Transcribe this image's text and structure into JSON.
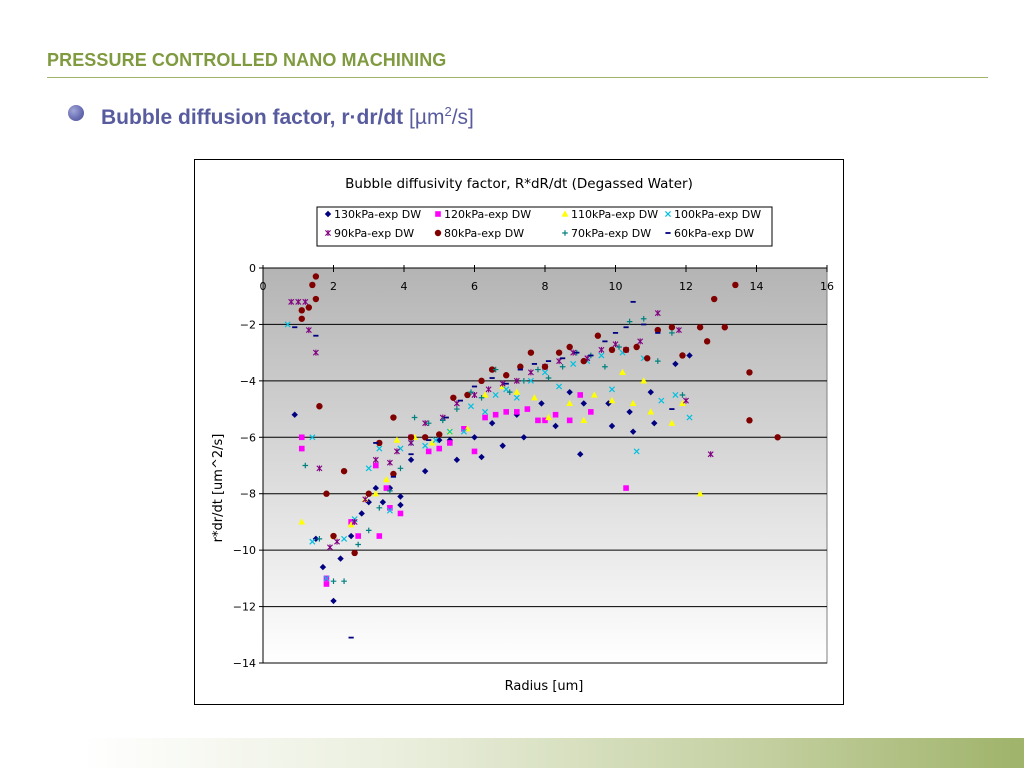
{
  "slide": {
    "title": "PRESSURE CONTROLLED NANO MACHINING",
    "bullet_main": "Bubble diffusion factor, r",
    "bullet_dot": "·",
    "bullet_dr": "dr/dt",
    "bullet_unit_open": "[µm",
    "bullet_unit_sup": "2",
    "bullet_unit_close": "/s]"
  },
  "colors": {
    "title": "#7f9a3f",
    "bullet": "#585c9e",
    "accent_rule": "#9fb36a"
  },
  "chart_data": {
    "type": "scatter",
    "title": "Bubble diffusivity factor, R*dR/dt (Degassed Water)",
    "xlabel": "Radius [um]",
    "ylabel": "r*dr/dt [um^2/s]",
    "xlim": [
      0,
      16
    ],
    "ylim": [
      -14,
      0
    ],
    "xticks": [
      0,
      2,
      4,
      6,
      8,
      10,
      12,
      14,
      16
    ],
    "yticks": [
      0,
      -2,
      -4,
      -6,
      -8,
      -10,
      -12,
      -14
    ],
    "ytick_labels": [
      "0",
      "−2",
      "−4",
      "−6",
      "−8",
      "−10",
      "−12",
      "−14"
    ],
    "grid": "horizontal",
    "legend_position": "top",
    "series": [
      {
        "name": "130kPa-exp DW",
        "marker": "diamond",
        "color": "#000080",
        "points": [
          [
            0.9,
            -5.2
          ],
          [
            1.5,
            -9.6
          ],
          [
            1.7,
            -10.6
          ],
          [
            2.0,
            -11.8
          ],
          [
            2.2,
            -10.3
          ],
          [
            2.5,
            -9.5
          ],
          [
            2.8,
            -8.7
          ],
          [
            3.0,
            -8.3
          ],
          [
            3.2,
            -7.8
          ],
          [
            3.4,
            -8.3
          ],
          [
            3.6,
            -7.8
          ],
          [
            3.9,
            -8.1
          ],
          [
            3.9,
            -8.4
          ],
          [
            4.2,
            -6.8
          ],
          [
            4.6,
            -7.2
          ],
          [
            5.0,
            -6.1
          ],
          [
            5.3,
            -6.1
          ],
          [
            5.5,
            -6.8
          ],
          [
            6.0,
            -6.0
          ],
          [
            6.2,
            -6.7
          ],
          [
            6.5,
            -5.5
          ],
          [
            6.8,
            -6.3
          ],
          [
            7.2,
            -5.2
          ],
          [
            7.4,
            -6.0
          ],
          [
            7.9,
            -4.8
          ],
          [
            8.3,
            -5.6
          ],
          [
            8.7,
            -4.4
          ],
          [
            9.0,
            -6.6
          ],
          [
            9.1,
            -4.8
          ],
          [
            9.8,
            -4.8
          ],
          [
            9.9,
            -5.6
          ],
          [
            10.4,
            -5.1
          ],
          [
            10.5,
            -5.8
          ],
          [
            11.0,
            -4.4
          ],
          [
            11.1,
            -5.5
          ],
          [
            11.7,
            -3.4
          ],
          [
            12.1,
            -3.1
          ]
        ]
      },
      {
        "name": "120kPa-exp DW",
        "marker": "square",
        "color": "#ff00ff",
        "points": [
          [
            1.1,
            -6.0
          ],
          [
            1.1,
            -6.4
          ],
          [
            1.8,
            -11.0
          ],
          [
            1.8,
            -11.2
          ],
          [
            2.5,
            -9.0
          ],
          [
            2.7,
            -9.5
          ],
          [
            3.2,
            -7.0
          ],
          [
            3.3,
            -9.5
          ],
          [
            3.5,
            -7.8
          ],
          [
            3.6,
            -8.5
          ],
          [
            3.9,
            -8.7
          ],
          [
            4.2,
            -6.0
          ],
          [
            4.7,
            -6.5
          ],
          [
            5.0,
            -6.4
          ],
          [
            5.3,
            -6.2
          ],
          [
            5.7,
            -5.7
          ],
          [
            6.0,
            -6.5
          ],
          [
            6.3,
            -5.3
          ],
          [
            6.6,
            -5.2
          ],
          [
            6.9,
            -5.1
          ],
          [
            7.2,
            -5.1
          ],
          [
            7.5,
            -5.0
          ],
          [
            7.8,
            -5.4
          ],
          [
            8.0,
            -5.4
          ],
          [
            8.3,
            -5.2
          ],
          [
            8.7,
            -5.4
          ],
          [
            9.0,
            -4.5
          ],
          [
            9.3,
            -5.1
          ],
          [
            10.3,
            -7.8
          ]
        ]
      },
      {
        "name": "110kPa-exp DW",
        "marker": "triangle",
        "color": "#ffff00",
        "points": [
          [
            1.1,
            -9.0
          ],
          [
            2.0,
            -9.5
          ],
          [
            2.5,
            -9.1
          ],
          [
            2.9,
            -8.2
          ],
          [
            3.2,
            -8.0
          ],
          [
            3.5,
            -7.5
          ],
          [
            3.8,
            -6.1
          ],
          [
            4.3,
            -6.0
          ],
          [
            4.8,
            -6.2
          ],
          [
            5.3,
            -5.8
          ],
          [
            5.8,
            -5.7
          ],
          [
            6.3,
            -4.5
          ],
          [
            6.8,
            -4.2
          ],
          [
            7.2,
            -4.4
          ],
          [
            7.7,
            -4.6
          ],
          [
            8.1,
            -5.3
          ],
          [
            8.7,
            -4.8
          ],
          [
            9.1,
            -5.4
          ],
          [
            9.4,
            -4.5
          ],
          [
            9.9,
            -4.7
          ],
          [
            10.2,
            -3.7
          ],
          [
            10.5,
            -4.8
          ],
          [
            10.8,
            -4.0
          ],
          [
            11.0,
            -5.1
          ],
          [
            11.6,
            -5.5
          ],
          [
            11.9,
            -4.8
          ],
          [
            12.4,
            -8.0
          ]
        ]
      },
      {
        "name": "100kPa-exp DW",
        "marker": "x",
        "color": "#00c0e0",
        "points": [
          [
            0.7,
            -2.0
          ],
          [
            1.4,
            -6.0
          ],
          [
            1.4,
            -9.7
          ],
          [
            1.8,
            -11.0
          ],
          [
            2.3,
            -9.6
          ],
          [
            2.6,
            -8.9
          ],
          [
            3.0,
            -7.1
          ],
          [
            3.3,
            -6.4
          ],
          [
            3.6,
            -8.6
          ],
          [
            3.9,
            -6.4
          ],
          [
            4.2,
            -6.2
          ],
          [
            4.6,
            -6.3
          ],
          [
            4.9,
            -6.1
          ],
          [
            5.3,
            -5.8
          ],
          [
            5.7,
            -5.8
          ],
          [
            5.9,
            -4.9
          ],
          [
            6.3,
            -5.1
          ],
          [
            6.6,
            -4.5
          ],
          [
            6.9,
            -4.3
          ],
          [
            7.2,
            -4.6
          ],
          [
            7.6,
            -4.0
          ],
          [
            8.0,
            -3.7
          ],
          [
            8.4,
            -4.2
          ],
          [
            8.8,
            -3.4
          ],
          [
            9.2,
            -3.3
          ],
          [
            9.6,
            -3.1
          ],
          [
            9.9,
            -4.3
          ],
          [
            10.2,
            -3.0
          ],
          [
            10.6,
            -6.5
          ],
          [
            10.8,
            -3.2
          ],
          [
            11.3,
            -4.7
          ],
          [
            11.7,
            -4.5
          ],
          [
            12.1,
            -5.3
          ]
        ]
      },
      {
        "name": "90kPa-exp DW",
        "marker": "star",
        "color": "#800080",
        "points": [
          [
            0.8,
            -1.2
          ],
          [
            1.0,
            -1.2
          ],
          [
            1.2,
            -1.2
          ],
          [
            1.3,
            -2.2
          ],
          [
            1.5,
            -3.0
          ],
          [
            1.6,
            -7.1
          ],
          [
            1.9,
            -9.9
          ],
          [
            2.1,
            -9.7
          ],
          [
            2.6,
            -9.0
          ],
          [
            2.9,
            -8.2
          ],
          [
            3.2,
            -6.8
          ],
          [
            3.6,
            -6.9
          ],
          [
            3.8,
            -6.5
          ],
          [
            4.2,
            -6.2
          ],
          [
            4.6,
            -5.5
          ],
          [
            5.1,
            -5.3
          ],
          [
            5.5,
            -4.8
          ],
          [
            6.0,
            -4.5
          ],
          [
            6.4,
            -4.3
          ],
          [
            6.8,
            -4.1
          ],
          [
            7.2,
            -4.0
          ],
          [
            7.6,
            -3.7
          ],
          [
            8.0,
            -3.5
          ],
          [
            8.4,
            -3.3
          ],
          [
            8.8,
            -3.0
          ],
          [
            9.2,
            -3.2
          ],
          [
            9.6,
            -2.9
          ],
          [
            10.0,
            -2.7
          ],
          [
            10.3,
            -2.9
          ],
          [
            10.7,
            -2.6
          ],
          [
            11.2,
            -1.6
          ],
          [
            11.8,
            -2.2
          ],
          [
            12.0,
            -4.7
          ],
          [
            12.7,
            -6.6
          ]
        ]
      },
      {
        "name": "80kPa-exp DW",
        "marker": "circle",
        "color": "#800000",
        "points": [
          [
            1.1,
            -1.5
          ],
          [
            1.1,
            -1.8
          ],
          [
            1.3,
            -1.4
          ],
          [
            1.4,
            -0.6
          ],
          [
            1.5,
            -0.3
          ],
          [
            1.5,
            -1.1
          ],
          [
            1.6,
            -4.9
          ],
          [
            1.8,
            -8.0
          ],
          [
            2.0,
            -9.5
          ],
          [
            2.3,
            -7.2
          ],
          [
            2.6,
            -10.1
          ],
          [
            3.0,
            -8.0
          ],
          [
            3.3,
            -6.2
          ],
          [
            3.7,
            -7.3
          ],
          [
            3.7,
            -5.3
          ],
          [
            4.2,
            -6.0
          ],
          [
            4.6,
            -6.0
          ],
          [
            5.0,
            -5.9
          ],
          [
            5.4,
            -4.6
          ],
          [
            5.8,
            -4.5
          ],
          [
            6.2,
            -4.0
          ],
          [
            6.5,
            -3.6
          ],
          [
            6.9,
            -3.8
          ],
          [
            7.3,
            -3.5
          ],
          [
            7.6,
            -3.0
          ],
          [
            8.0,
            -3.5
          ],
          [
            8.4,
            -3.0
          ],
          [
            8.7,
            -2.8
          ],
          [
            9.1,
            -3.3
          ],
          [
            9.5,
            -2.4
          ],
          [
            9.9,
            -2.9
          ],
          [
            10.3,
            -2.9
          ],
          [
            10.6,
            -2.8
          ],
          [
            10.9,
            -3.2
          ],
          [
            11.2,
            -2.2
          ],
          [
            11.6,
            -2.1
          ],
          [
            11.9,
            -3.1
          ],
          [
            12.4,
            -2.1
          ],
          [
            12.6,
            -2.6
          ],
          [
            12.8,
            -1.1
          ],
          [
            13.1,
            -2.1
          ],
          [
            13.4,
            -0.6
          ],
          [
            13.8,
            -5.4
          ],
          [
            13.8,
            -3.7
          ],
          [
            14.6,
            -6.0
          ]
        ]
      },
      {
        "name": "70kPa-exp DW",
        "marker": "plus",
        "color": "#008080",
        "points": [
          [
            1.2,
            -7.0
          ],
          [
            1.6,
            -9.6
          ],
          [
            2.0,
            -11.1
          ],
          [
            2.3,
            -11.1
          ],
          [
            2.7,
            -9.8
          ],
          [
            3.0,
            -9.3
          ],
          [
            3.3,
            -8.5
          ],
          [
            3.6,
            -7.9
          ],
          [
            3.9,
            -7.1
          ],
          [
            4.3,
            -5.3
          ],
          [
            4.7,
            -5.5
          ],
          [
            5.1,
            -5.4
          ],
          [
            5.5,
            -5.0
          ],
          [
            5.9,
            -4.4
          ],
          [
            6.2,
            -4.6
          ],
          [
            6.6,
            -3.6
          ],
          [
            7.0,
            -4.4
          ],
          [
            7.4,
            -4.0
          ],
          [
            7.8,
            -3.6
          ],
          [
            8.1,
            -3.9
          ],
          [
            8.5,
            -3.5
          ],
          [
            8.9,
            -3.0
          ],
          [
            9.3,
            -3.1
          ],
          [
            9.7,
            -3.5
          ],
          [
            10.1,
            -2.8
          ],
          [
            10.4,
            -1.9
          ],
          [
            10.8,
            -1.8
          ],
          [
            11.2,
            -3.3
          ],
          [
            11.6,
            -2.3
          ],
          [
            11.9,
            -4.5
          ]
        ]
      },
      {
        "name": "60kPa-exp DW",
        "marker": "dash",
        "color": "#000080",
        "points": [
          [
            0.9,
            -2.1
          ],
          [
            1.5,
            -2.4
          ],
          [
            2.5,
            -13.1
          ],
          [
            3.2,
            -6.2
          ],
          [
            3.7,
            -7.4
          ],
          [
            4.2,
            -6.6
          ],
          [
            4.7,
            -6.1
          ],
          [
            5.2,
            -5.3
          ],
          [
            5.6,
            -4.7
          ],
          [
            6.0,
            -4.2
          ],
          [
            6.5,
            -3.9
          ],
          [
            6.9,
            -4.1
          ],
          [
            7.3,
            -3.6
          ],
          [
            7.7,
            -3.4
          ],
          [
            8.1,
            -3.3
          ],
          [
            8.5,
            -3.2
          ],
          [
            8.9,
            -3.0
          ],
          [
            9.3,
            -3.1
          ],
          [
            9.7,
            -2.6
          ],
          [
            10.0,
            -2.3
          ],
          [
            10.3,
            -2.1
          ],
          [
            10.5,
            -1.2
          ],
          [
            10.8,
            -2.0
          ],
          [
            11.2,
            -2.3
          ],
          [
            11.6,
            -5.0
          ]
        ]
      }
    ]
  }
}
